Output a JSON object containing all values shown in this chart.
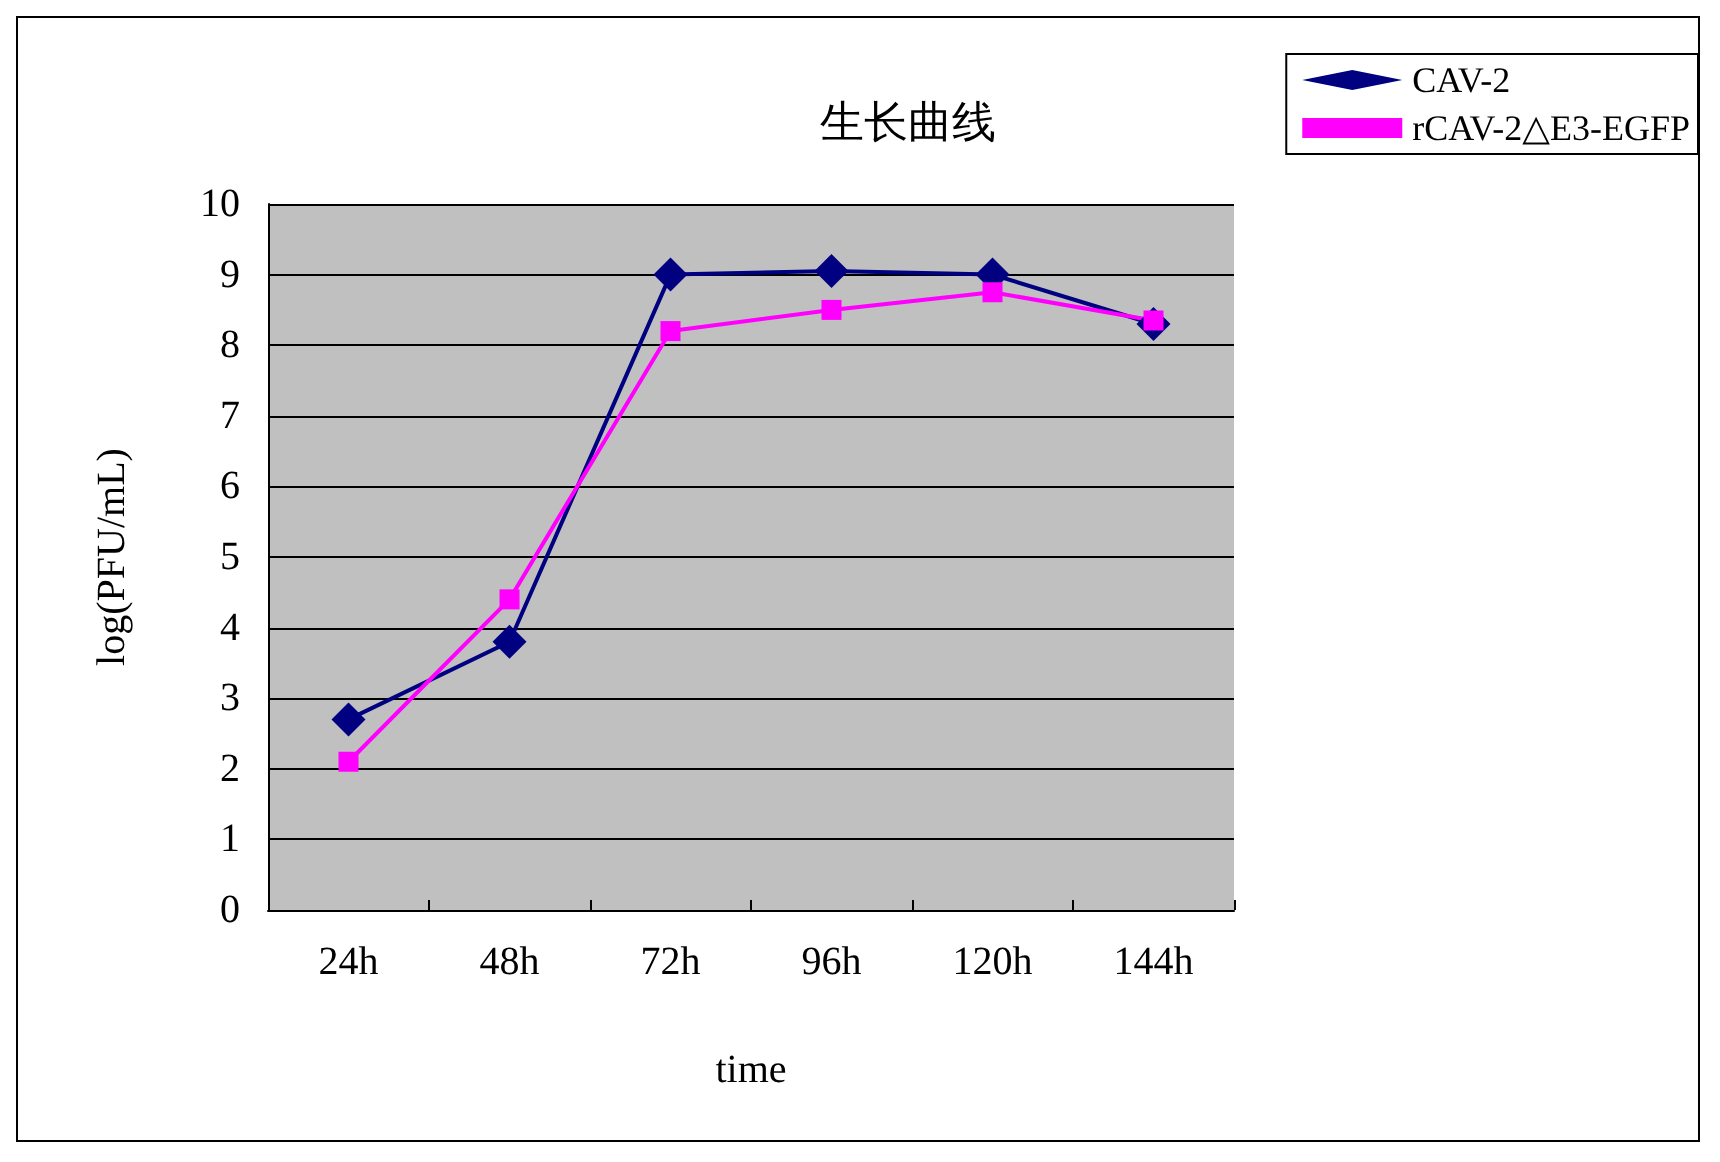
{
  "chart_data": {
    "type": "line",
    "title": "生长曲线",
    "xlabel": "time",
    "ylabel": "log(PFU/mL)",
    "categories": [
      "24h",
      "48h",
      "72h",
      "96h",
      "120h",
      "144h"
    ],
    "series": [
      {
        "name": "CAV-2",
        "color": "#000080",
        "marker": "diamond",
        "values": [
          2.7,
          3.8,
          9.0,
          9.05,
          9.0,
          8.3
        ]
      },
      {
        "name": "rCAV-2△E3-EGFP",
        "color": "#ff00ff",
        "marker": "square",
        "values": [
          2.1,
          4.4,
          8.2,
          8.5,
          8.75,
          8.35
        ]
      }
    ],
    "ylim": [
      0,
      10
    ],
    "yticks": [
      0,
      1,
      2,
      3,
      4,
      5,
      6,
      7,
      8,
      9,
      10
    ],
    "grid": "y",
    "legend": "top right",
    "line_style": "solid"
  }
}
